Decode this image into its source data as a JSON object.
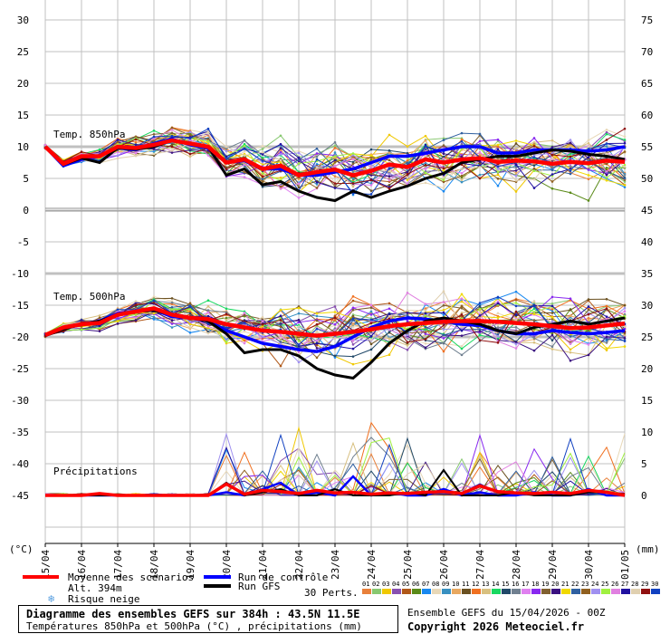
{
  "chart_data": {
    "type": "line",
    "title": "Diagramme des ensembles GEFS sur 384h : 43.5N 11.5E",
    "subtitle": "Températures 850hPa et 500hPa (°C) , précipitations (mm)",
    "run_info": "Ensemble GEFS du 15/04/2026 - 00Z",
    "copyright": "Copyright 2026 Meteociel.fr",
    "altitude": "Alt. 394m",
    "ylabel_left": "(°C)",
    "ylabel_right": "(mm)",
    "ylim_left": [
      -50,
      30
    ],
    "ylim_right": [
      0,
      75
    ],
    "left_ticks": [
      "30",
      "25",
      "20",
      "15",
      "10",
      "5",
      "0",
      "-5",
      "-10",
      "-15",
      "-20",
      "-25",
      "-30",
      "-35",
      "-40",
      "-45"
    ],
    "right_ticks": [
      "75",
      "70",
      "65",
      "60",
      "55",
      "50",
      "45",
      "40",
      "35",
      "30",
      "25",
      "20",
      "15",
      "10",
      "5",
      "0"
    ],
    "x_ticks": [
      "15/04",
      "16/04",
      "17/04",
      "18/04",
      "19/04",
      "20/04",
      "21/04",
      "22/04",
      "23/04",
      "24/04",
      "25/04",
      "26/04",
      "27/04",
      "28/04",
      "29/04",
      "30/04",
      "01/05"
    ],
    "x_step_hours": 12,
    "section_labels": {
      "t850": "Temp. 850hPa",
      "t500": "Temp. 500hPa",
      "precip": "Précipitations"
    },
    "series": {
      "mean_850": [
        10,
        7.3,
        8.5,
        8.5,
        10,
        9.8,
        10.3,
        11,
        10.5,
        10,
        7.5,
        8,
        6.5,
        7,
        5.5,
        6,
        6.4,
        5.5,
        6.2,
        7.2,
        6.8,
        8,
        7.5,
        8,
        8.2,
        7.6,
        7.8,
        7.7,
        7.3,
        7.6,
        7.4,
        7.8,
        7.6
      ],
      "control_850": [
        10,
        7,
        8,
        8.5,
        9.8,
        9.5,
        10.5,
        11.2,
        10.3,
        9.8,
        7.5,
        7.8,
        6.5,
        6.5,
        5.5,
        5.5,
        6,
        6.5,
        7.5,
        8.5,
        8.5,
        9,
        9.5,
        10,
        10,
        9,
        9,
        9.5,
        9.5,
        9.5,
        9.3,
        9.5,
        10
      ],
      "gfs_850": [
        10,
        7.2,
        8.2,
        7.5,
        9.8,
        9.6,
        10,
        11,
        10.5,
        10,
        5.5,
        6.5,
        4,
        4.5,
        3,
        2,
        1.5,
        3,
        2,
        3,
        3.8,
        5,
        5.8,
        7.5,
        8,
        8.5,
        8.5,
        9,
        9.5,
        9.3,
        8.8,
        8.5,
        8
      ],
      "mean_500": [
        -19.7,
        -18.5,
        -18,
        -17.8,
        -16.5,
        -16,
        -15.5,
        -16.5,
        -17,
        -17.2,
        -18,
        -18.5,
        -19,
        -19.2,
        -19.5,
        -19.8,
        -19.5,
        -19.2,
        -18.8,
        -18.3,
        -18,
        -17.8,
        -17.6,
        -17.5,
        -17.5,
        -17.6,
        -17.8,
        -18,
        -18.3,
        -18.6,
        -18.5,
        -18.2,
        -17.9
      ],
      "control_500": [
        -19.8,
        -18.5,
        -18,
        -17.5,
        -16.3,
        -16,
        -15.7,
        -16.8,
        -17,
        -17.5,
        -19,
        -20,
        -21,
        -21.5,
        -22,
        -22.3,
        -21.5,
        -20,
        -18.5,
        -17.5,
        -17,
        -17.2,
        -17.5,
        -18,
        -18.2,
        -19,
        -19.5,
        -19.5,
        -19,
        -19.3,
        -19.5,
        -19.3,
        -19
      ],
      "gfs_500": [
        -19.8,
        -18.8,
        -18,
        -17.5,
        -16.5,
        -16,
        -15.8,
        -16.5,
        -17,
        -17.5,
        -19.5,
        -22.5,
        -22,
        -22,
        -23,
        -25,
        -26,
        -26.5,
        -24,
        -21,
        -19,
        -17.5,
        -17,
        -17.5,
        -18,
        -19,
        -19.5,
        -18.5,
        -18,
        -17.5,
        -18,
        -17.5,
        -17
      ],
      "mean_precip": [
        0,
        0,
        0,
        0.3,
        0,
        0,
        0,
        0,
        0,
        0,
        1.8,
        0.2,
        0.8,
        0.6,
        0.3,
        0.8,
        0.4,
        0.5,
        0.2,
        0.4,
        0.3,
        0.5,
        0.6,
        0.3,
        1.5,
        0.6,
        0.4,
        0.3,
        0.5,
        0.3,
        0.8,
        0.5,
        0
      ],
      "control_precip": [
        0,
        0,
        0,
        0,
        0,
        0,
        0,
        0,
        0,
        0,
        0.5,
        0,
        1,
        2,
        0,
        0.5,
        0,
        3,
        0,
        0.5,
        0,
        0,
        1,
        0,
        0.5,
        0,
        0,
        0.5,
        0,
        0,
        1,
        0,
        0
      ],
      "gfs_precip": [
        0,
        0,
        0,
        0,
        0,
        0,
        0,
        0,
        0,
        0,
        2,
        0,
        0.5,
        1,
        0,
        0,
        1,
        0,
        0,
        0,
        0.5,
        0,
        4,
        0,
        0,
        0,
        0.5,
        0,
        0,
        0,
        0.5,
        0.5,
        0
      ]
    },
    "legend": {
      "mean": "Moyenne des scénarios",
      "control": "Run de contrôle",
      "gfs": "Run GFS",
      "snow": "Risque neige",
      "perts": "30 Perts."
    },
    "colors": {
      "mean": "#ff0000",
      "control": "#0000ff",
      "gfs": "#000000",
      "grid": "#c0c0c0"
    },
    "members": [
      {
        "id": "01",
        "color": "#e8803a"
      },
      {
        "id": "02",
        "color": "#88c870"
      },
      {
        "id": "03",
        "color": "#f0c800"
      },
      {
        "id": "04",
        "color": "#8850b0"
      },
      {
        "id": "05",
        "color": "#b05818"
      },
      {
        "id": "06",
        "color": "#5a8a18"
      },
      {
        "id": "07",
        "color": "#1888f0"
      },
      {
        "id": "08",
        "color": "#e8d8b8"
      },
      {
        "id": "09",
        "color": "#3890c0"
      },
      {
        "id": "10",
        "color": "#e8a860"
      },
      {
        "id": "11",
        "color": "#6a5020"
      },
      {
        "id": "12",
        "color": "#f07020"
      },
      {
        "id": "13",
        "color": "#d8c080"
      },
      {
        "id": "14",
        "color": "#18d860"
      },
      {
        "id": "15",
        "color": "#204868"
      },
      {
        "id": "16",
        "color": "#708090"
      },
      {
        "id": "17",
        "color": "#e080f0"
      },
      {
        "id": "18",
        "color": "#8828f0"
      },
      {
        "id": "19",
        "color": "#806030"
      },
      {
        "id": "20",
        "color": "#3a1080"
      },
      {
        "id": "21",
        "color": "#f0d800"
      },
      {
        "id": "22",
        "color": "#3060a0"
      },
      {
        "id": "23",
        "color": "#906020"
      },
      {
        "id": "24",
        "color": "#a090f0"
      },
      {
        "id": "25",
        "color": "#a0f040"
      },
      {
        "id": "26",
        "color": "#e080e0"
      },
      {
        "id": "27",
        "color": "#2010a0"
      },
      {
        "id": "28",
        "color": "#e0d0b0"
      },
      {
        "id": "29",
        "color": "#901010"
      },
      {
        "id": "30",
        "color": "#1040c0"
      }
    ]
  }
}
